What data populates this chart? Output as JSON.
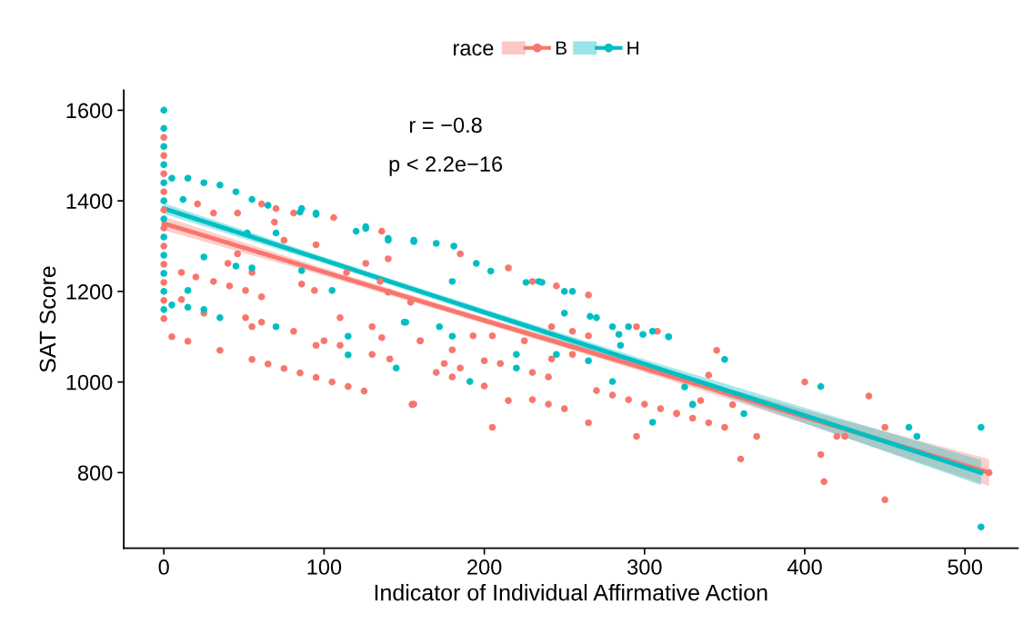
{
  "chart_data": {
    "type": "scatter",
    "xlabel": "Indicator of Individual Affirmative Action",
    "ylabel": "SAT Score",
    "legend_title": "race",
    "legend": "top",
    "grid": false,
    "marker": "circle",
    "xlim": [
      -25,
      533
    ],
    "ylim": [
      633,
      1644
    ],
    "xticks": [
      0,
      100,
      200,
      300,
      400,
      500
    ],
    "yticks": [
      800,
      1000,
      1200,
      1400,
      1600
    ],
    "annotations": [
      "r = −0.8",
      "p < 2.2e−16"
    ],
    "series": [
      {
        "name": "B",
        "color": "#f8766d",
        "x": [
          0,
          0,
          0,
          0,
          0,
          0,
          0,
          0,
          0,
          0,
          0,
          5,
          15,
          35,
          55,
          65,
          75,
          85,
          95,
          105,
          115,
          125,
          155,
          205,
          265,
          295,
          345,
          400,
          440,
          450,
          410,
          412,
          450,
          515,
          360,
          370,
          350,
          340,
          330,
          320,
          335,
          355,
          340,
          420,
          425,
          185,
          215,
          245,
          265,
          230,
          295,
          308,
          160,
          180,
          175,
          170,
          180,
          185,
          200,
          215,
          230,
          240,
          250,
          270,
          280,
          290,
          300,
          310,
          320,
          155,
          200,
          210,
          230,
          240,
          242,
          255,
          265,
          255,
          225,
          205,
          193,
          242,
          11,
          20,
          31,
          41,
          51,
          61,
          11,
          25,
          51,
          55,
          61,
          81,
          110,
          130,
          136,
          141,
          95,
          110,
          100,
          130,
          160,
          156,
          61,
          31,
          21,
          46,
          70,
          81,
          106,
          69,
          75,
          95,
          136,
          46,
          40,
          55,
          114,
          126,
          140,
          135,
          140,
          154,
          86,
          94
        ],
        "values": [
          1140,
          1180,
          1220,
          1260,
          1300,
          1340,
          1380,
          1420,
          1460,
          1500,
          1540,
          1100,
          1090,
          1070,
          1050,
          1040,
          1030,
          1020,
          1010,
          1000,
          990,
          980,
          950,
          900,
          910,
          880,
          1070,
          1000,
          969,
          900,
          840,
          780,
          740,
          800,
          830,
          880,
          900,
          910,
          920,
          930,
          959,
          950,
          1015,
          880,
          880,
          1283,
          1252,
          1212,
          1192,
          1222,
          1122,
          1112,
          1091,
          1071,
          1041,
          1021,
          1011,
          1031,
          991,
          959,
          961,
          951,
          941,
          981,
          971,
          961,
          951,
          941,
          931,
          951,
          1047,
          1041,
          1021,
          1011,
          1051,
          1061,
          1102,
          1112,
          1091,
          1102,
          1102,
          1122,
          1242,
          1232,
          1222,
          1212,
          1202,
          1188,
          1182,
          1152,
          1142,
          1122,
          1132,
          1112,
          1142,
          1122,
          1098,
          1051,
          1081,
          1081,
          1091,
          1061,
          1091,
          951,
          1393,
          1373,
          1393,
          1373,
          1383,
          1373,
          1363,
          1353,
          1313,
          1303,
          1333,
          1283,
          1262,
          1242,
          1242,
          1262,
          1272,
          1222,
          1198,
          1176,
          1216,
          1202
        ]
      },
      {
        "name": "H",
        "color": "#00bfc4",
        "x": [
          0,
          0,
          0,
          0,
          0,
          0,
          0,
          0,
          0,
          0,
          0,
          0,
          5,
          15,
          25,
          35,
          45,
          65,
          85,
          95,
          126,
          140,
          156,
          170,
          181,
          204,
          226,
          236,
          250,
          266,
          284,
          299,
          315,
          5,
          15,
          25,
          35,
          70,
          115,
          115,
          145,
          150,
          15,
          25,
          45,
          55,
          86,
          105,
          120,
          126,
          140,
          156,
          86,
          95,
          55,
          12,
          70,
          52,
          195,
          234,
          255,
          270,
          280,
          290,
          285,
          305,
          315,
          180,
          172,
          180,
          220,
          220,
          191,
          245,
          265,
          280,
          305,
          330,
          250,
          151,
          350,
          410,
          465,
          470,
          510,
          510,
          330,
          362,
          325
        ],
        "values": [
          1160,
          1200,
          1240,
          1280,
          1320,
          1360,
          1400,
          1440,
          1480,
          1520,
          1560,
          1600,
          1450,
          1450,
          1440,
          1435,
          1420,
          1390,
          1375,
          1370,
          1343,
          1317,
          1310,
          1306,
          1300,
          1245,
          1220,
          1220,
          1200,
          1145,
          1105,
          1105,
          1100,
          1170,
          1165,
          1160,
          1142,
          1122,
          1101,
          1060,
          1031,
          1132,
          1202,
          1276,
          1256,
          1252,
          1246,
          1202,
          1333,
          1339,
          1313,
          1313,
          1383,
          1373,
          1403,
          1403,
          1329,
          1329,
          1262,
          1222,
          1200,
          1142,
          1122,
          1122,
          1081,
          1112,
          1100,
          1222,
          1122,
          1101,
          1061,
          1031,
          1001,
          1061,
          1047,
          1001,
          911,
          951,
          1152,
          1132,
          1050,
          990,
          900,
          880,
          900,
          680,
          950,
          930,
          989
        ]
      },
      {
        "type": "line",
        "marker": "none",
        "color": "#f8766d",
        "x": [
          0,
          100,
          200,
          300,
          400,
          515
        ],
        "values": [
          1350,
          1243,
          1136,
          1030,
          923,
          800
        ],
        "lower": [
          1335,
          1235,
          1129,
          1022,
          908,
          770
        ],
        "upper": [
          1365,
          1251,
          1143,
          1038,
          938,
          830
        ]
      },
      {
        "type": "line",
        "marker": "none",
        "color": "#00bfc4",
        "x": [
          0,
          100,
          200,
          300,
          400,
          510
        ],
        "values": [
          1383,
          1269,
          1154,
          1040,
          926,
          800
        ],
        "lower": [
          1371,
          1262,
          1147,
          1030,
          909,
          772
        ],
        "upper": [
          1395,
          1276,
          1161,
          1050,
          943,
          828
        ]
      }
    ]
  }
}
